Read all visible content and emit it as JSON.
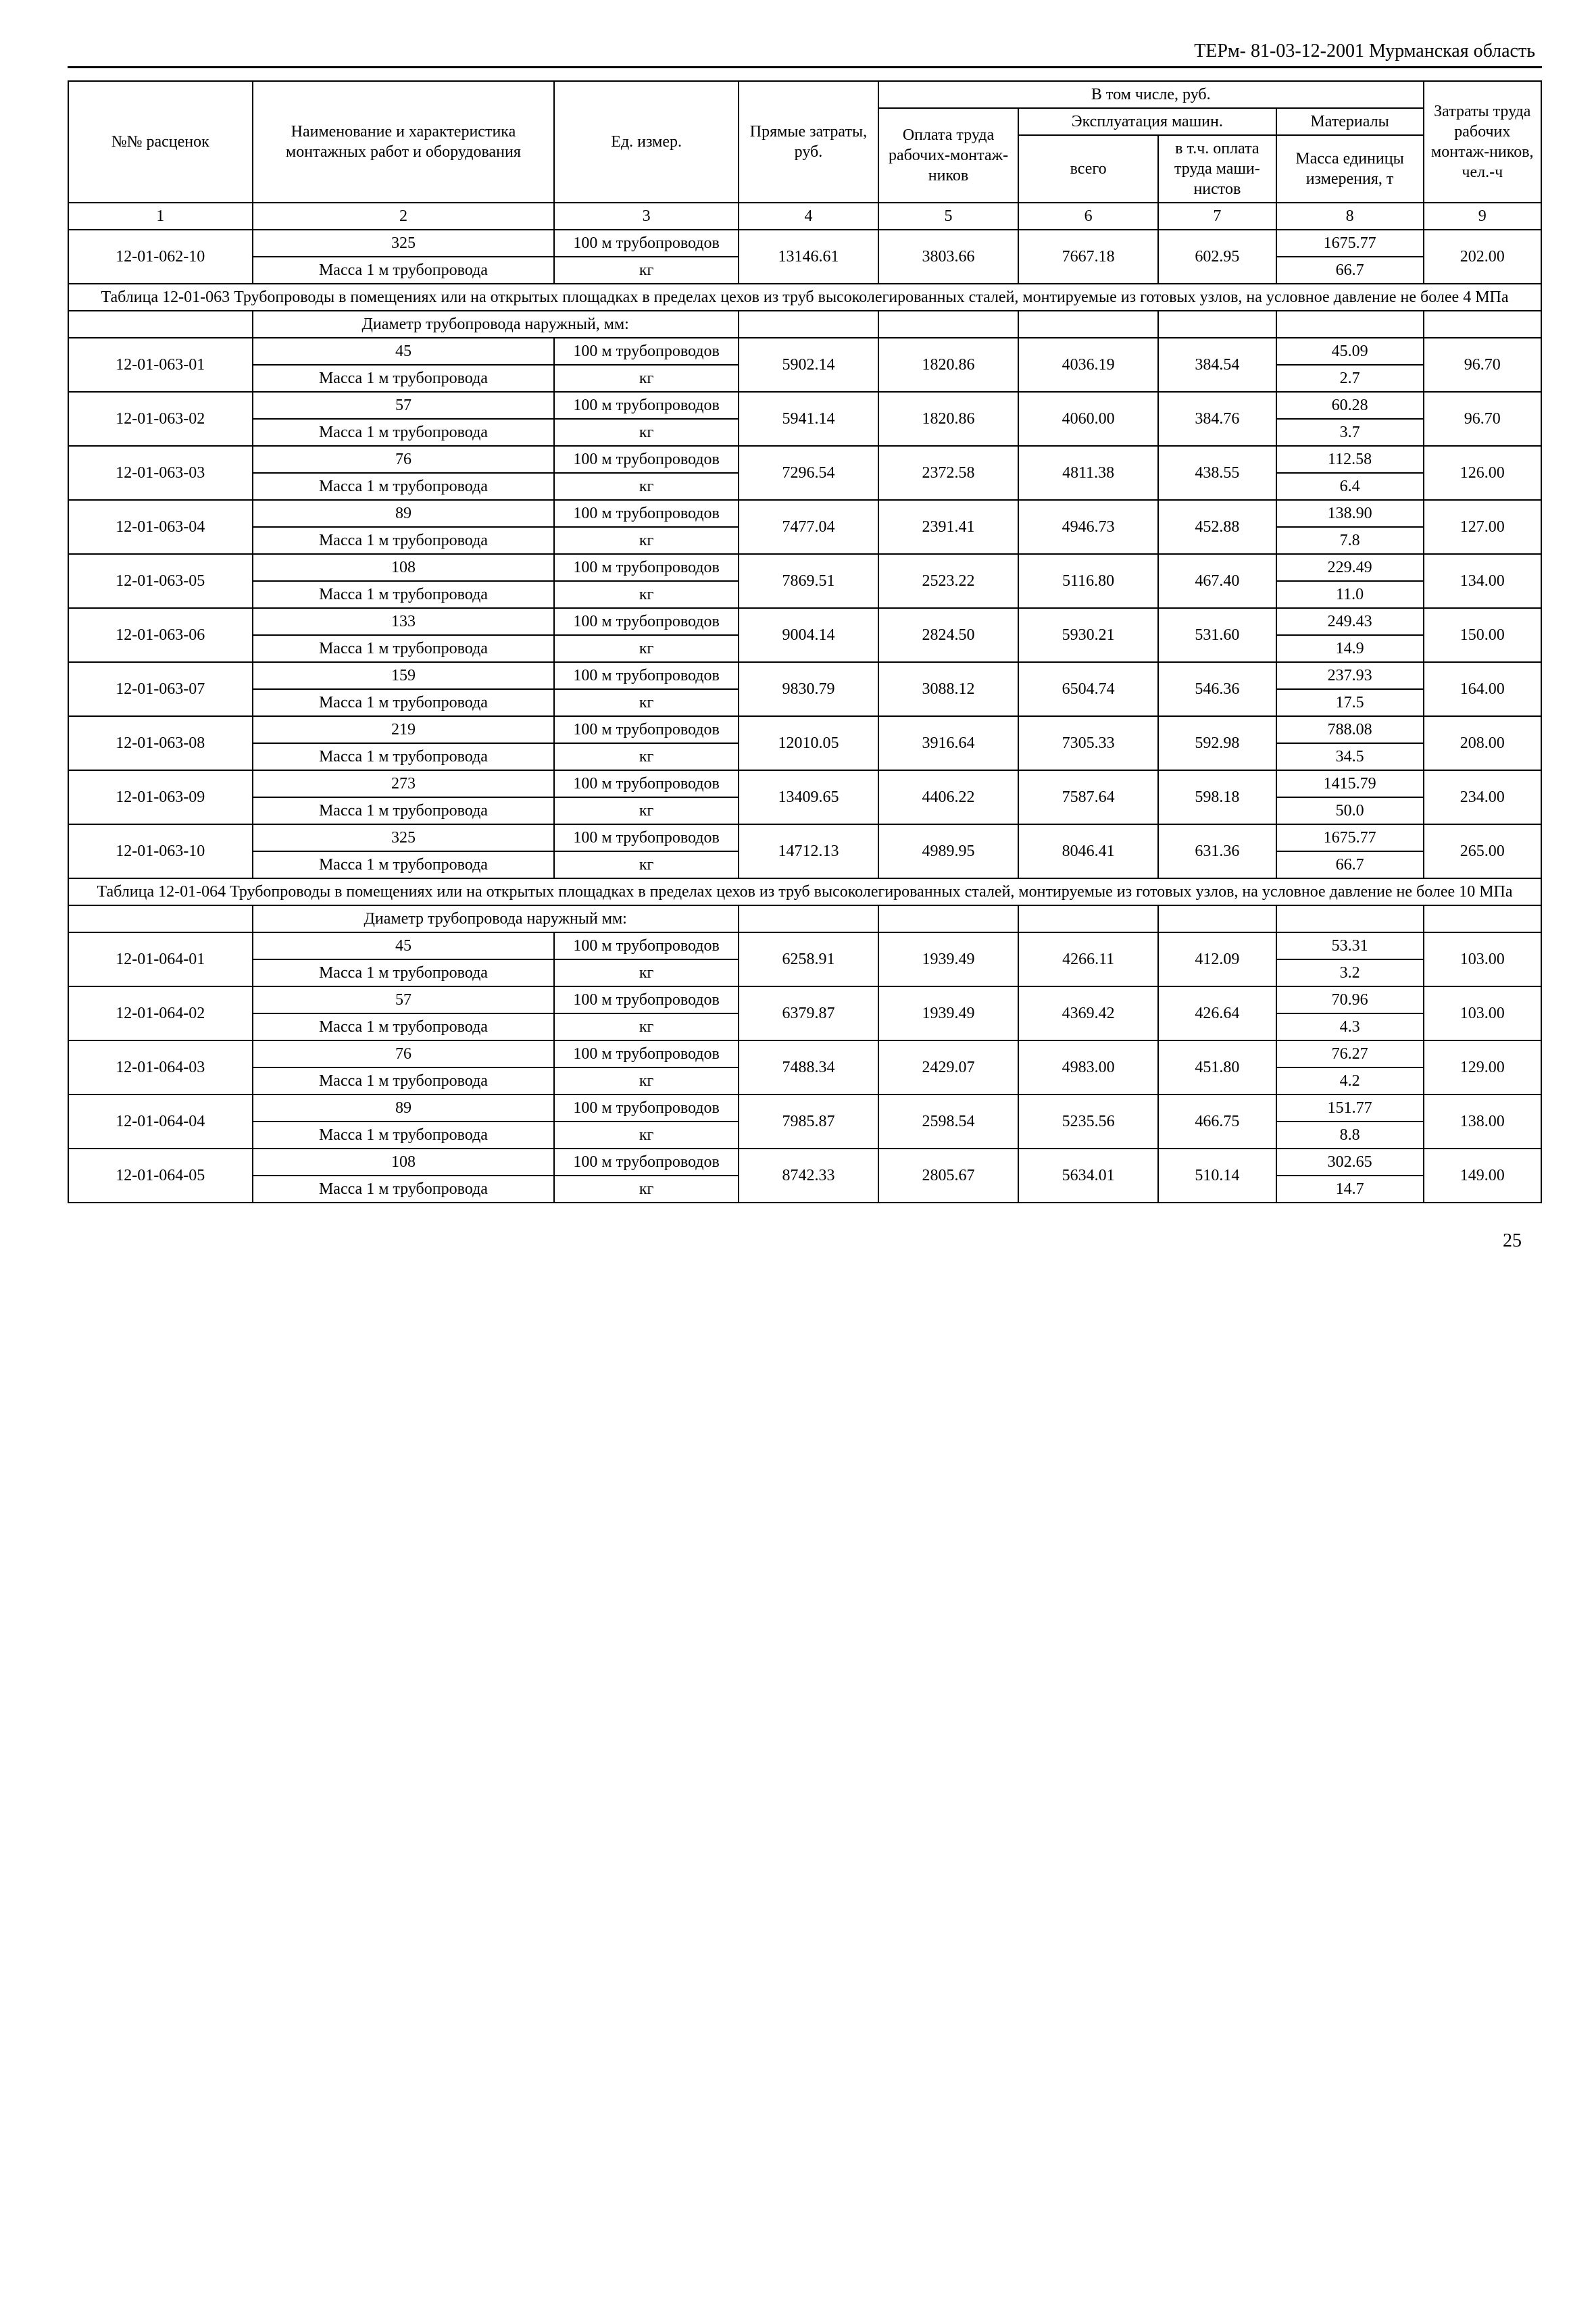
{
  "doc_header": "ТЕРм- 81-03-12-2001 Мурманская область",
  "page_number": "25",
  "header": {
    "code": "№№ расценок",
    "name": "Наименование и характеристика монтажных работ и оборудования",
    "unit": "Ед. измер.",
    "direct": "Прямые затраты, руб.",
    "incl": "В том числе, руб.",
    "labor": "Оплата труда рабочих-монтаж-ников",
    "mach_group": "Эксплуатация машин.",
    "mach_total": "всего",
    "mach_op": "в т.ч. оплата труда маши-нистов",
    "materials": "Материалы",
    "mat_mass": "Масса единицы измерения, т",
    "lh": "Затраты труда рабочих монтаж-ников, чел.-ч",
    "n1": "1",
    "n2": "2",
    "n3": "3",
    "n4": "4",
    "n5": "5",
    "n6": "6",
    "n7": "7",
    "n8": "8",
    "n9": "9"
  },
  "unit_pipe": "100  м трубопроводов",
  "unit_kg": "кг",
  "mass_label": "Масса 1 м трубопровода",
  "diam_label": "Диаметр трубопровода наружный, мм:",
  "diam_label2": "Диаметр трубопровода наружный мм:",
  "pre_row": {
    "code": "12-01-062-10",
    "diam": "325",
    "direct": "13146.61",
    "labor": "3803.66",
    "mach": "7667.18",
    "machop": "602.95",
    "mat": "1675.77",
    "lh": "202.00",
    "mass": "66.7"
  },
  "title_063": "Таблица   12-01-063   Трубопроводы в помещениях или на открытых площадках в пределах цехов из труб высоколегированных сталей, монтируемые из готовых узлов, на условное давление не более 4 МПа",
  "t063": [
    {
      "code": "12-01-063-01",
      "diam": "45",
      "direct": "5902.14",
      "labor": "1820.86",
      "mach": "4036.19",
      "machop": "384.54",
      "mat": "45.09",
      "lh": "96.70",
      "mass": "2.7"
    },
    {
      "code": "12-01-063-02",
      "diam": "57",
      "direct": "5941.14",
      "labor": "1820.86",
      "mach": "4060.00",
      "machop": "384.76",
      "mat": "60.28",
      "lh": "96.70",
      "mass": "3.7"
    },
    {
      "code": "12-01-063-03",
      "diam": "76",
      "direct": "7296.54",
      "labor": "2372.58",
      "mach": "4811.38",
      "machop": "438.55",
      "mat": "112.58",
      "lh": "126.00",
      "mass": "6.4"
    },
    {
      "code": "12-01-063-04",
      "diam": "89",
      "direct": "7477.04",
      "labor": "2391.41",
      "mach": "4946.73",
      "machop": "452.88",
      "mat": "138.90",
      "lh": "127.00",
      "mass": "7.8"
    },
    {
      "code": "12-01-063-05",
      "diam": "108",
      "direct": "7869.51",
      "labor": "2523.22",
      "mach": "5116.80",
      "machop": "467.40",
      "mat": "229.49",
      "lh": "134.00",
      "mass": "11.0"
    },
    {
      "code": "12-01-063-06",
      "diam": "133",
      "direct": "9004.14",
      "labor": "2824.50",
      "mach": "5930.21",
      "machop": "531.60",
      "mat": "249.43",
      "lh": "150.00",
      "mass": "14.9"
    },
    {
      "code": "12-01-063-07",
      "diam": "159",
      "direct": "9830.79",
      "labor": "3088.12",
      "mach": "6504.74",
      "machop": "546.36",
      "mat": "237.93",
      "lh": "164.00",
      "mass": "17.5"
    },
    {
      "code": "12-01-063-08",
      "diam": "219",
      "direct": "12010.05",
      "labor": "3916.64",
      "mach": "7305.33",
      "machop": "592.98",
      "mat": "788.08",
      "lh": "208.00",
      "mass": "34.5"
    },
    {
      "code": "12-01-063-09",
      "diam": "273",
      "direct": "13409.65",
      "labor": "4406.22",
      "mach": "7587.64",
      "machop": "598.18",
      "mat": "1415.79",
      "lh": "234.00",
      "mass": "50.0"
    },
    {
      "code": "12-01-063-10",
      "diam": "325",
      "direct": "14712.13",
      "labor": "4989.95",
      "mach": "8046.41",
      "machop": "631.36",
      "mat": "1675.77",
      "lh": "265.00",
      "mass": "66.7"
    }
  ],
  "title_064": "Таблица   12-01-064   Трубопроводы в помещениях или на открытых площадках в пределах цехов из труб высоколегированных сталей, монтируемые из готовых узлов, на условное давление не более 10 МПа",
  "t064": [
    {
      "code": "12-01-064-01",
      "diam": "45",
      "direct": "6258.91",
      "labor": "1939.49",
      "mach": "4266.11",
      "machop": "412.09",
      "mat": "53.31",
      "lh": "103.00",
      "mass": "3.2"
    },
    {
      "code": "12-01-064-02",
      "diam": "57",
      "direct": "6379.87",
      "labor": "1939.49",
      "mach": "4369.42",
      "machop": "426.64",
      "mat": "70.96",
      "lh": "103.00",
      "mass": "4.3"
    },
    {
      "code": "12-01-064-03",
      "diam": "76",
      "direct": "7488.34",
      "labor": "2429.07",
      "mach": "4983.00",
      "machop": "451.80",
      "mat": "76.27",
      "lh": "129.00",
      "mass": "4.2"
    },
    {
      "code": "12-01-064-04",
      "diam": "89",
      "direct": "7985.87",
      "labor": "2598.54",
      "mach": "5235.56",
      "machop": "466.75",
      "mat": "151.77",
      "lh": "138.00",
      "mass": "8.8"
    },
    {
      "code": "12-01-064-05",
      "diam": "108",
      "direct": "8742.33",
      "labor": "2805.67",
      "mach": "5634.01",
      "machop": "510.14",
      "mat": "302.65",
      "lh": "149.00",
      "mass": "14.7"
    }
  ]
}
